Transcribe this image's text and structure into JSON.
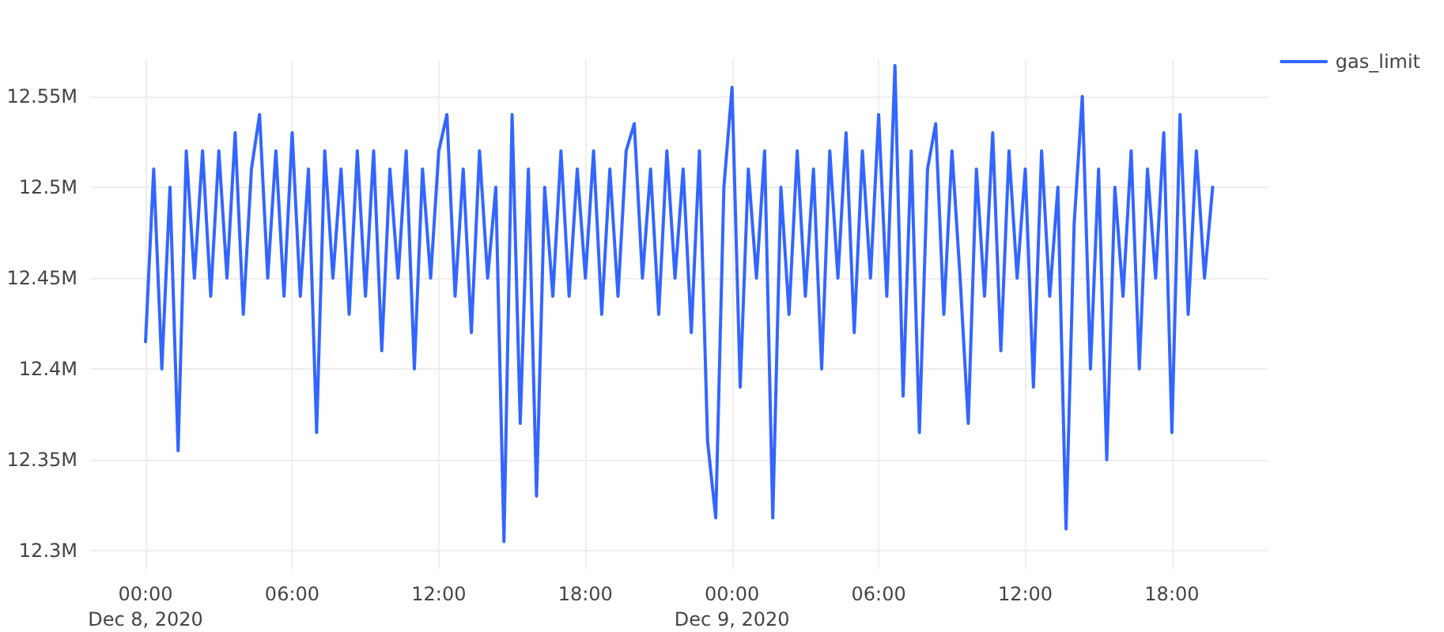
{
  "chart_data": {
    "type": "line",
    "legend": "top right",
    "grid": true,
    "marker": "none",
    "line_style": "solid",
    "xlim": [
      "2020-12-07T21:44",
      "2020-12-09T21:57"
    ],
    "xticks": [
      {
        "value": "2020-12-08T00:00",
        "label": "00:00\nDec 8, 2020"
      },
      {
        "value": "2020-12-08T06:00",
        "label": "06:00"
      },
      {
        "value": "2020-12-08T12:00",
        "label": "12:00"
      },
      {
        "value": "2020-12-08T18:00",
        "label": "18:00"
      },
      {
        "value": "2020-12-09T00:00",
        "label": "00:00\nDec 9, 2020"
      },
      {
        "value": "2020-12-09T06:00",
        "label": "06:00"
      },
      {
        "value": "2020-12-09T12:00",
        "label": "12:00"
      },
      {
        "value": "2020-12-09T18:00",
        "label": "18:00"
      }
    ],
    "ylim": [
      12290000,
      12570000
    ],
    "yticks": [
      {
        "value": 12300000,
        "label": "12.3M"
      },
      {
        "value": 12350000,
        "label": "12.35M"
      },
      {
        "value": 12400000,
        "label": "12.4M"
      },
      {
        "value": 12450000,
        "label": "12.45M"
      },
      {
        "value": 12500000,
        "label": "12.5M"
      },
      {
        "value": 12550000,
        "label": "12.55M"
      }
    ],
    "x": [
      "2020-12-08T00:00",
      "2020-12-08T00:20",
      "2020-12-08T00:40",
      "2020-12-08T01:00",
      "2020-12-08T01:20",
      "2020-12-08T01:40",
      "2020-12-08T02:00",
      "2020-12-08T02:20",
      "2020-12-08T02:40",
      "2020-12-08T03:00",
      "2020-12-08T03:20",
      "2020-12-08T03:40",
      "2020-12-08T04:00",
      "2020-12-08T04:20",
      "2020-12-08T04:40",
      "2020-12-08T05:00",
      "2020-12-08T05:20",
      "2020-12-08T05:40",
      "2020-12-08T06:00",
      "2020-12-08T06:20",
      "2020-12-08T06:40",
      "2020-12-08T07:00",
      "2020-12-08T07:20",
      "2020-12-08T07:40",
      "2020-12-08T08:00",
      "2020-12-08T08:20",
      "2020-12-08T08:40",
      "2020-12-08T09:00",
      "2020-12-08T09:20",
      "2020-12-08T09:40",
      "2020-12-08T10:00",
      "2020-12-08T10:20",
      "2020-12-08T10:40",
      "2020-12-08T11:00",
      "2020-12-08T11:20",
      "2020-12-08T11:40",
      "2020-12-08T12:00",
      "2020-12-08T12:20",
      "2020-12-08T12:40",
      "2020-12-08T13:00",
      "2020-12-08T13:20",
      "2020-12-08T13:40",
      "2020-12-08T14:00",
      "2020-12-08T14:20",
      "2020-12-08T14:40",
      "2020-12-08T15:00",
      "2020-12-08T15:20",
      "2020-12-08T15:40",
      "2020-12-08T16:00",
      "2020-12-08T16:20",
      "2020-12-08T16:40",
      "2020-12-08T17:00",
      "2020-12-08T17:20",
      "2020-12-08T17:40",
      "2020-12-08T18:00",
      "2020-12-08T18:20",
      "2020-12-08T18:40",
      "2020-12-08T19:00",
      "2020-12-08T19:20",
      "2020-12-08T19:40",
      "2020-12-08T20:00",
      "2020-12-08T20:20",
      "2020-12-08T20:40",
      "2020-12-08T21:00",
      "2020-12-08T21:20",
      "2020-12-08T21:40",
      "2020-12-08T22:00",
      "2020-12-08T22:20",
      "2020-12-08T22:40",
      "2020-12-08T23:00",
      "2020-12-08T23:20",
      "2020-12-08T23:40",
      "2020-12-09T00:00",
      "2020-12-09T00:20",
      "2020-12-09T00:40",
      "2020-12-09T01:00",
      "2020-12-09T01:20",
      "2020-12-09T01:40",
      "2020-12-09T02:00",
      "2020-12-09T02:20",
      "2020-12-09T02:40",
      "2020-12-09T03:00",
      "2020-12-09T03:20",
      "2020-12-09T03:40",
      "2020-12-09T04:00",
      "2020-12-09T04:20",
      "2020-12-09T04:40",
      "2020-12-09T05:00",
      "2020-12-09T05:20",
      "2020-12-09T05:40",
      "2020-12-09T06:00",
      "2020-12-09T06:20",
      "2020-12-09T06:40",
      "2020-12-09T07:00",
      "2020-12-09T07:20",
      "2020-12-09T07:40",
      "2020-12-09T08:00",
      "2020-12-09T08:20",
      "2020-12-09T08:40",
      "2020-12-09T09:00",
      "2020-12-09T09:20",
      "2020-12-09T09:40",
      "2020-12-09T10:00",
      "2020-12-09T10:20",
      "2020-12-09T10:40",
      "2020-12-09T11:00",
      "2020-12-09T11:20",
      "2020-12-09T11:40",
      "2020-12-09T12:00",
      "2020-12-09T12:20",
      "2020-12-09T12:40",
      "2020-12-09T13:00",
      "2020-12-09T13:20",
      "2020-12-09T13:40",
      "2020-12-09T14:00",
      "2020-12-09T14:20",
      "2020-12-09T14:40",
      "2020-12-09T15:00",
      "2020-12-09T15:20",
      "2020-12-09T15:40",
      "2020-12-09T16:00",
      "2020-12-09T16:20",
      "2020-12-09T16:40",
      "2020-12-09T17:00",
      "2020-12-09T17:20",
      "2020-12-09T17:40",
      "2020-12-09T18:00",
      "2020-12-09T18:20",
      "2020-12-09T18:40",
      "2020-12-09T19:00",
      "2020-12-09T19:20",
      "2020-12-09T19:40"
    ],
    "series": [
      {
        "name": "gas_limit",
        "color": "#3366ff",
        "values": [
          12415000,
          12510000,
          12400000,
          12500000,
          12355000,
          12520000,
          12450000,
          12520000,
          12440000,
          12520000,
          12450000,
          12530000,
          12430000,
          12510000,
          12540000,
          12450000,
          12520000,
          12440000,
          12530000,
          12440000,
          12510000,
          12365000,
          12520000,
          12450000,
          12510000,
          12430000,
          12520000,
          12440000,
          12520000,
          12410000,
          12510000,
          12450000,
          12520000,
          12400000,
          12510000,
          12450000,
          12520000,
          12540000,
          12440000,
          12510000,
          12420000,
          12520000,
          12450000,
          12500000,
          12305000,
          12540000,
          12370000,
          12510000,
          12330000,
          12500000,
          12440000,
          12520000,
          12440000,
          12510000,
          12450000,
          12520000,
          12430000,
          12510000,
          12440000,
          12520000,
          12535000,
          12450000,
          12510000,
          12430000,
          12520000,
          12450000,
          12510000,
          12420000,
          12520000,
          12360000,
          12318000,
          12500000,
          12555000,
          12390000,
          12510000,
          12450000,
          12520000,
          12318000,
          12500000,
          12430000,
          12520000,
          12440000,
          12510000,
          12400000,
          12520000,
          12450000,
          12530000,
          12420000,
          12520000,
          12450000,
          12540000,
          12440000,
          12567000,
          12385000,
          12520000,
          12365000,
          12510000,
          12535000,
          12430000,
          12520000,
          12450000,
          12370000,
          12510000,
          12440000,
          12530000,
          12410000,
          12520000,
          12450000,
          12510000,
          12390000,
          12520000,
          12440000,
          12500000,
          12312000,
          12480000,
          12550000,
          12400000,
          12510000,
          12350000,
          12500000,
          12440000,
          12520000,
          12400000,
          12510000,
          12450000,
          12530000,
          12365000,
          12540000,
          12430000,
          12520000,
          12450000,
          12500000
        ]
      }
    ]
  }
}
